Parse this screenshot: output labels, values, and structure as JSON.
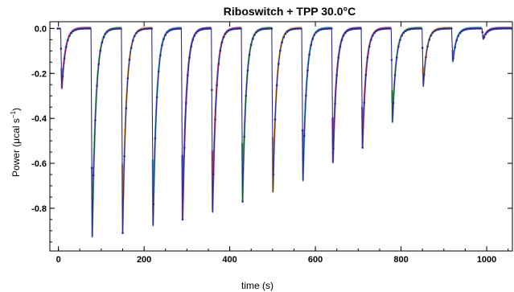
{
  "chart_data": {
    "type": "line",
    "title": "Riboswitch + TPP    30.0°C",
    "xlabel": "time (s)",
    "ylabel": "Power (μcal s",
    "ylabel_sup": "−1",
    "ylabel_end": ")",
    "xlim": [
      -20,
      1060
    ],
    "ylim": [
      -0.99,
      0.03
    ],
    "x_ticks": [
      0,
      200,
      400,
      600,
      800,
      1000
    ],
    "x_tick_labels": [
      "0",
      "200",
      "400",
      "600",
      "800",
      "1000"
    ],
    "y_ticks": [
      0.0,
      -0.2,
      -0.4,
      -0.6,
      -0.8
    ],
    "y_tick_labels": [
      "0.0",
      "-0.2",
      "-0.4",
      "-0.6",
      "-0.8"
    ],
    "grid": false,
    "baseline": 0.0,
    "injections": [
      {
        "t": 5,
        "peak": -0.27
      },
      {
        "t": 76,
        "peak": -0.93
      },
      {
        "t": 147,
        "peak": -0.91
      },
      {
        "t": 218,
        "peak": -0.88
      },
      {
        "t": 287,
        "peak": -0.85
      },
      {
        "t": 357,
        "peak": -0.82
      },
      {
        "t": 427,
        "peak": -0.77
      },
      {
        "t": 498,
        "peak": -0.73
      },
      {
        "t": 568,
        "peak": -0.68
      },
      {
        "t": 638,
        "peak": -0.6
      },
      {
        "t": 707,
        "peak": -0.53
      },
      {
        "t": 777,
        "peak": -0.42
      },
      {
        "t": 849,
        "peak": -0.26
      },
      {
        "t": 918,
        "peak": -0.15
      },
      {
        "t": 989,
        "peak": -0.05
      }
    ],
    "series": [
      {
        "role": "data",
        "color": "#2b2b8f"
      },
      {
        "role": "fit",
        "colors": [
          "#c0306a",
          "#3aa04a",
          "#d08a20",
          "#2a8fc8",
          "#7a2aa0"
        ]
      }
    ]
  }
}
